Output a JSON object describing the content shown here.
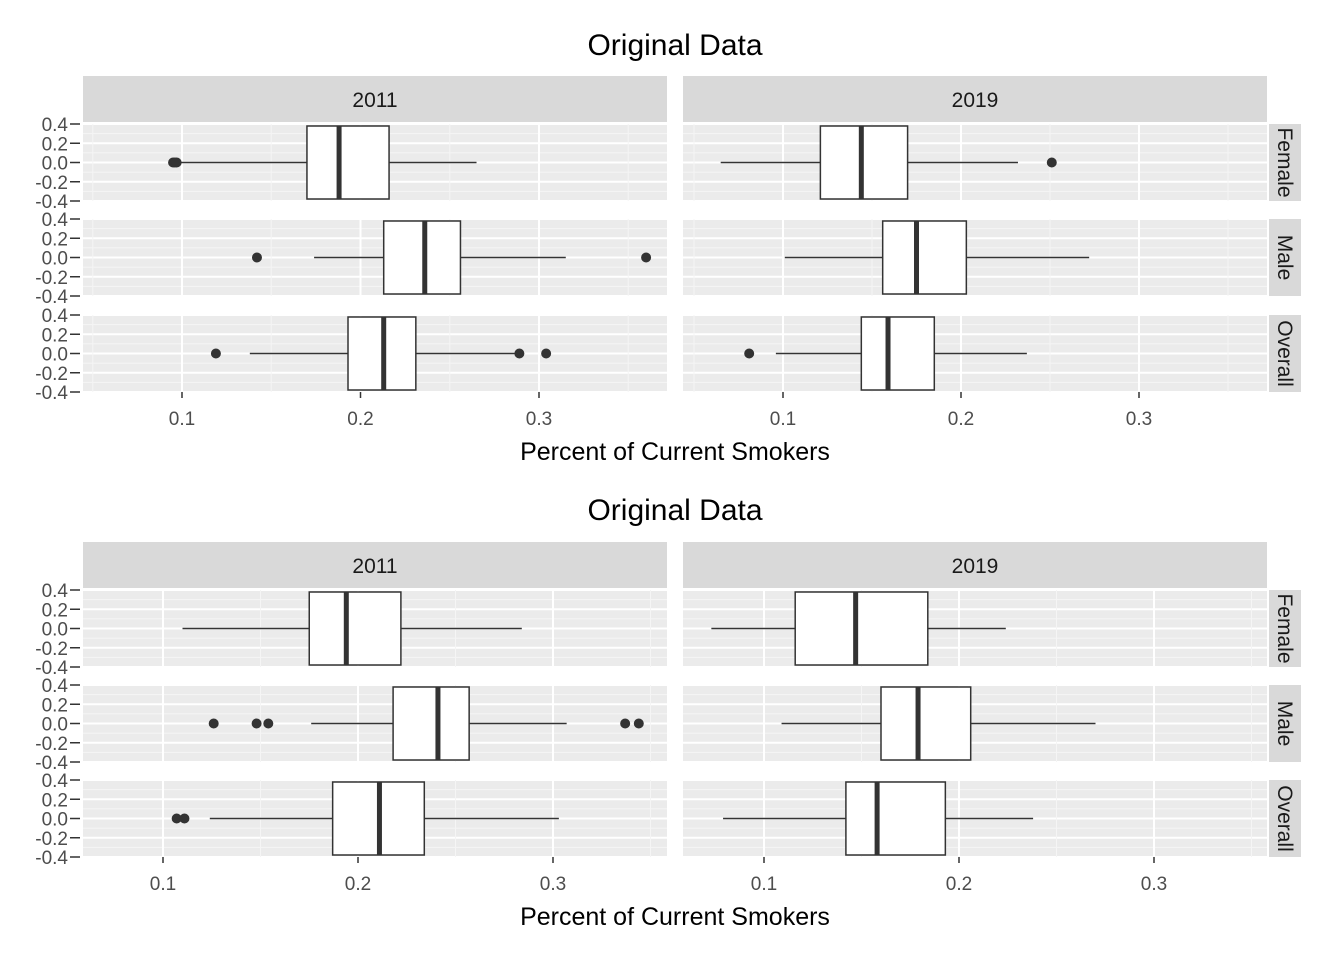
{
  "chart_data": [
    {
      "type": "boxplot",
      "title": "Original Data",
      "xlabel": "Percent of Current Smokers",
      "ylabel": "",
      "columns": [
        "2011",
        "2019"
      ],
      "rows": [
        "Female",
        "Male",
        "Overall"
      ],
      "y_ticks": [
        "0.4",
        "0.2",
        "0.0",
        "-0.2",
        "-0.4"
      ],
      "x_ticks": [
        "0.1",
        "0.2",
        "0.3"
      ],
      "boxes": [
        [
          {
            "whisker_low": 0.099,
            "q1": 0.17,
            "median": 0.188,
            "q3": 0.216,
            "whisker_high": 0.265,
            "outliers": [
              0.095,
              0.096,
              0.097
            ]
          },
          {
            "whisker_low": 0.174,
            "q1": 0.213,
            "median": 0.236,
            "q3": 0.256,
            "whisker_high": 0.315,
            "outliers": [
              0.142,
              0.36
            ]
          },
          {
            "whisker_low": 0.138,
            "q1": 0.193,
            "median": 0.213,
            "q3": 0.231,
            "whisker_high": 0.287,
            "outliers": [
              0.119,
              0.289,
              0.304
            ]
          }
        ],
        [
          {
            "whisker_low": 0.065,
            "q1": 0.121,
            "median": 0.144,
            "q3": 0.17,
            "whisker_high": 0.232,
            "outliers": [
              0.251
            ]
          },
          {
            "whisker_low": 0.101,
            "q1": 0.156,
            "median": 0.175,
            "q3": 0.203,
            "whisker_high": 0.272,
            "outliers": []
          },
          {
            "whisker_low": 0.096,
            "q1": 0.144,
            "median": 0.159,
            "q3": 0.185,
            "whisker_high": 0.237,
            "outliers": [
              0.081
            ]
          }
        ]
      ]
    },
    {
      "type": "boxplot",
      "title": "Original Data",
      "xlabel": "Percent of Current Smokers",
      "ylabel": "",
      "columns": [
        "2011",
        "2019"
      ],
      "rows": [
        "Female",
        "Male",
        "Overall"
      ],
      "y_ticks": [
        "0.4",
        "0.2",
        "0.0",
        "-0.2",
        "-0.4"
      ],
      "x_ticks": [
        "0.1",
        "0.2",
        "0.3"
      ],
      "boxes": [
        [
          {
            "whisker_low": 0.11,
            "q1": 0.175,
            "median": 0.194,
            "q3": 0.222,
            "whisker_high": 0.284,
            "outliers": []
          },
          {
            "whisker_low": 0.176,
            "q1": 0.218,
            "median": 0.241,
            "q3": 0.257,
            "whisker_high": 0.307,
            "outliers": [
              0.126,
              0.148,
              0.154,
              0.337,
              0.344
            ]
          },
          {
            "whisker_low": 0.124,
            "q1": 0.187,
            "median": 0.211,
            "q3": 0.234,
            "whisker_high": 0.303,
            "outliers": [
              0.107,
              0.111
            ]
          }
        ],
        [
          {
            "whisker_low": 0.073,
            "q1": 0.116,
            "median": 0.147,
            "q3": 0.184,
            "whisker_high": 0.224,
            "outliers": []
          },
          {
            "whisker_low": 0.109,
            "q1": 0.16,
            "median": 0.179,
            "q3": 0.206,
            "whisker_high": 0.27,
            "outliers": []
          },
          {
            "whisker_low": 0.079,
            "q1": 0.142,
            "median": 0.158,
            "q3": 0.193,
            "whisker_high": 0.238,
            "outliers": []
          }
        ]
      ]
    }
  ]
}
